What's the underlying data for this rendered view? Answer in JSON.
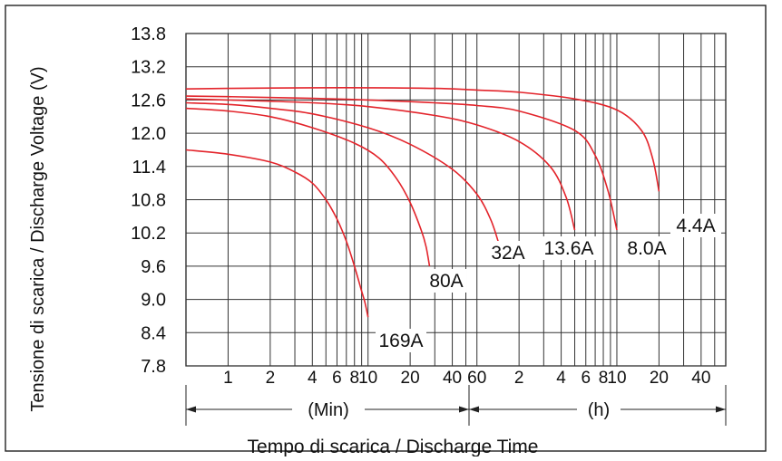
{
  "chart_data": {
    "type": "line",
    "xlabel": "Tempo di scarica / Discharge Time",
    "ylabel": "Tensione di scarica / Discharge Voltage (V)",
    "x_scale": "log",
    "x_unit_labels": {
      "minutes": "(Min)",
      "hours": "(h)"
    },
    "ylim": [
      7.8,
      13.8
    ],
    "xlim_minutes": [
      0.5,
      3600
    ],
    "y_ticks": [
      "13.8",
      "13.2",
      "12.6",
      "12.0",
      "11.4",
      "10.8",
      "10.2",
      "9.6",
      "9.0",
      "8.4",
      "7.8"
    ],
    "x_tick_labels": [
      {
        "label": "1",
        "minutes": 1
      },
      {
        "label": "2",
        "minutes": 2
      },
      {
        "label": "4",
        "minutes": 4
      },
      {
        "label": "6",
        "minutes": 6
      },
      {
        "label": "8",
        "minutes": 8
      },
      {
        "label": "10",
        "minutes": 10
      },
      {
        "label": "20",
        "minutes": 20
      },
      {
        "label": "40",
        "minutes": 40
      },
      {
        "label": "60",
        "minutes": 60
      },
      {
        "label": "2",
        "minutes": 120
      },
      {
        "label": "4",
        "minutes": 240
      },
      {
        "label": "6",
        "minutes": 360
      },
      {
        "label": "8",
        "minutes": 480
      },
      {
        "label": "10",
        "minutes": 600
      },
      {
        "label": "20",
        "minutes": 1200
      },
      {
        "label": "40",
        "minutes": 2400
      }
    ],
    "grid": true,
    "series": [
      {
        "name": "169A",
        "x_minutes": [
          0.5,
          1,
          2,
          3,
          4,
          5,
          6,
          7,
          8,
          9,
          9.5,
          10
        ],
        "y": [
          11.7,
          11.62,
          11.48,
          11.3,
          11.1,
          10.8,
          10.45,
          10.05,
          9.6,
          9.15,
          8.95,
          8.68
        ]
      },
      {
        "name": "80A",
        "x_minutes": [
          0.5,
          1,
          2,
          4,
          8,
          12,
          16,
          20,
          24,
          26,
          27.5
        ],
        "y": [
          12.45,
          12.4,
          12.3,
          12.1,
          11.82,
          11.55,
          11.18,
          10.75,
          10.25,
          9.95,
          9.6
        ]
      },
      {
        "name": "32A",
        "x_minutes": [
          0.5,
          1,
          2,
          4,
          10,
          20,
          40,
          60,
          75,
          85
        ],
        "y": [
          12.55,
          12.52,
          12.45,
          12.35,
          12.1,
          11.8,
          11.35,
          10.9,
          10.45,
          10.05
        ]
      },
      {
        "name": "13.6A",
        "x_minutes": [
          0.5,
          1,
          4,
          10,
          30,
          60,
          120,
          200,
          260,
          300
        ],
        "y": [
          12.62,
          12.6,
          12.55,
          12.48,
          12.32,
          12.15,
          11.85,
          11.4,
          10.85,
          10.25
        ]
      },
      {
        "name": "8.0A",
        "x_minutes": [
          0.5,
          1,
          4,
          10,
          30,
          60,
          120,
          300,
          420,
          520,
          600
        ],
        "y": [
          12.67,
          12.66,
          12.63,
          12.6,
          12.55,
          12.5,
          12.4,
          12.05,
          11.6,
          10.95,
          10.25
        ]
      },
      {
        "name": "4.4A",
        "x_minutes": [
          0.5,
          1,
          4,
          10,
          30,
          60,
          120,
          300,
          600,
          900,
          1080,
          1200
        ],
        "y": [
          12.8,
          12.81,
          12.82,
          12.82,
          12.81,
          12.78,
          12.74,
          12.62,
          12.42,
          12.05,
          11.55,
          10.95
        ]
      }
    ],
    "line_color": "#e3242b"
  }
}
